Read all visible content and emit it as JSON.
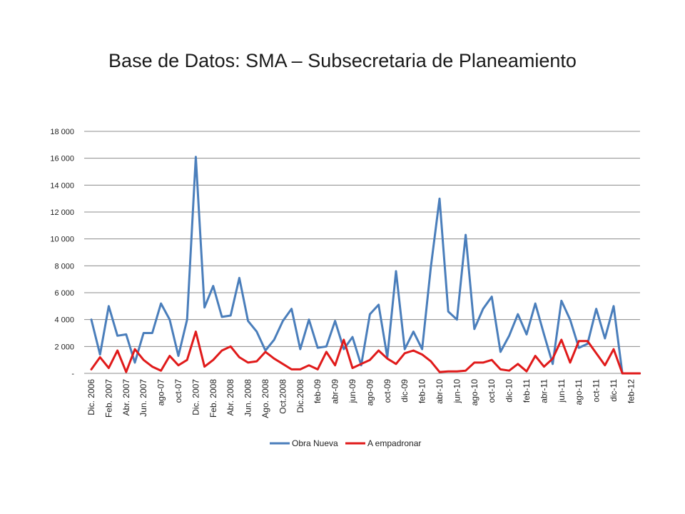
{
  "title": "Base de Datos: SMA – Subsecretaria de Planeamiento",
  "chart_data": {
    "type": "line",
    "title": "Base de Datos: SMA – Subsecretaria de Planeamiento",
    "xlabel": "",
    "ylabel": "",
    "ylim": [
      0,
      18000
    ],
    "y_ticks": [
      {
        "value": 0,
        "label": "-"
      },
      {
        "value": 2000,
        "label": "2 000"
      },
      {
        "value": 4000,
        "label": "4 000"
      },
      {
        "value": 6000,
        "label": "6 000"
      },
      {
        "value": 8000,
        "label": "8 000"
      },
      {
        "value": 10000,
        "label": "10 000"
      },
      {
        "value": 12000,
        "label": "12 000"
      },
      {
        "value": 14000,
        "label": "14 000"
      },
      {
        "value": 16000,
        "label": "16 000"
      },
      {
        "value": 18000,
        "label": "18 000"
      }
    ],
    "grid": true,
    "legend_position": "bottom",
    "x_tick_labels": [
      {
        "index": 0,
        "label": "Dic. 2006"
      },
      {
        "index": 2,
        "label": "Feb. 2007"
      },
      {
        "index": 4,
        "label": "Abr. 2007"
      },
      {
        "index": 6,
        "label": "Jun. 2007"
      },
      {
        "index": 8,
        "label": "ago-07"
      },
      {
        "index": 10,
        "label": "oct-07"
      },
      {
        "index": 12,
        "label": "Dic. 2007"
      },
      {
        "index": 14,
        "label": "Feb. 2008"
      },
      {
        "index": 16,
        "label": "Abr. 2008"
      },
      {
        "index": 18,
        "label": "Jun. 2008"
      },
      {
        "index": 20,
        "label": "Ago. 2008"
      },
      {
        "index": 22,
        "label": "Oct.2008"
      },
      {
        "index": 24,
        "label": "Dic.2008"
      },
      {
        "index": 26,
        "label": "feb-09"
      },
      {
        "index": 28,
        "label": "abr-09"
      },
      {
        "index": 30,
        "label": "jun-09"
      },
      {
        "index": 32,
        "label": "ago-09"
      },
      {
        "index": 34,
        "label": "oct-09"
      },
      {
        "index": 36,
        "label": "dic-09"
      },
      {
        "index": 38,
        "label": "feb-10"
      },
      {
        "index": 40,
        "label": "abr-10"
      },
      {
        "index": 42,
        "label": "jun-10"
      },
      {
        "index": 44,
        "label": "ago-10"
      },
      {
        "index": 46,
        "label": "oct-10"
      },
      {
        "index": 48,
        "label": "dic-10"
      },
      {
        "index": 50,
        "label": "feb-11"
      },
      {
        "index": 52,
        "label": "abr-11"
      },
      {
        "index": 54,
        "label": "jun-11"
      },
      {
        "index": 56,
        "label": "ago-11"
      },
      {
        "index": 58,
        "label": "oct-11"
      },
      {
        "index": 60,
        "label": "dic-11"
      },
      {
        "index": 62,
        "label": "feb-12"
      }
    ],
    "series": [
      {
        "name": "Obra Nueva",
        "color": "#4a7ebb",
        "values": [
          4000,
          1400,
          5000,
          2800,
          2900,
          800,
          3000,
          3000,
          5200,
          4000,
          1300,
          4000,
          16100,
          4900,
          6500,
          4200,
          4300,
          7100,
          3900,
          3100,
          1700,
          2500,
          3900,
          4800,
          1800,
          4000,
          1900,
          2000,
          3900,
          1800,
          2700,
          600,
          4400,
          5100,
          1200,
          7600,
          1800,
          3100,
          1800,
          7900,
          13000,
          4600,
          4000,
          10300,
          3300,
          4800,
          5700,
          1600,
          2800,
          4400,
          2900,
          5200,
          2900,
          700,
          5400,
          4000,
          1900,
          2200,
          4800,
          2600,
          5000,
          0,
          0,
          0
        ]
      },
      {
        "name": "A empadronar",
        "color": "#e01a1a",
        "values": [
          300,
          1200,
          400,
          1700,
          100,
          1800,
          1000,
          500,
          200,
          1300,
          600,
          1000,
          3100,
          500,
          1000,
          1700,
          2000,
          1200,
          800,
          900,
          1600,
          1100,
          700,
          300,
          300,
          600,
          300,
          1600,
          600,
          2500,
          400,
          700,
          1000,
          1700,
          1100,
          700,
          1500,
          1700,
          1400,
          900,
          100,
          150,
          150,
          200,
          800,
          800,
          1000,
          300,
          200,
          700,
          150,
          1300,
          500,
          1100,
          2500,
          800,
          2400,
          2400,
          1500,
          600,
          1800,
          0,
          0,
          0
        ]
      }
    ]
  }
}
